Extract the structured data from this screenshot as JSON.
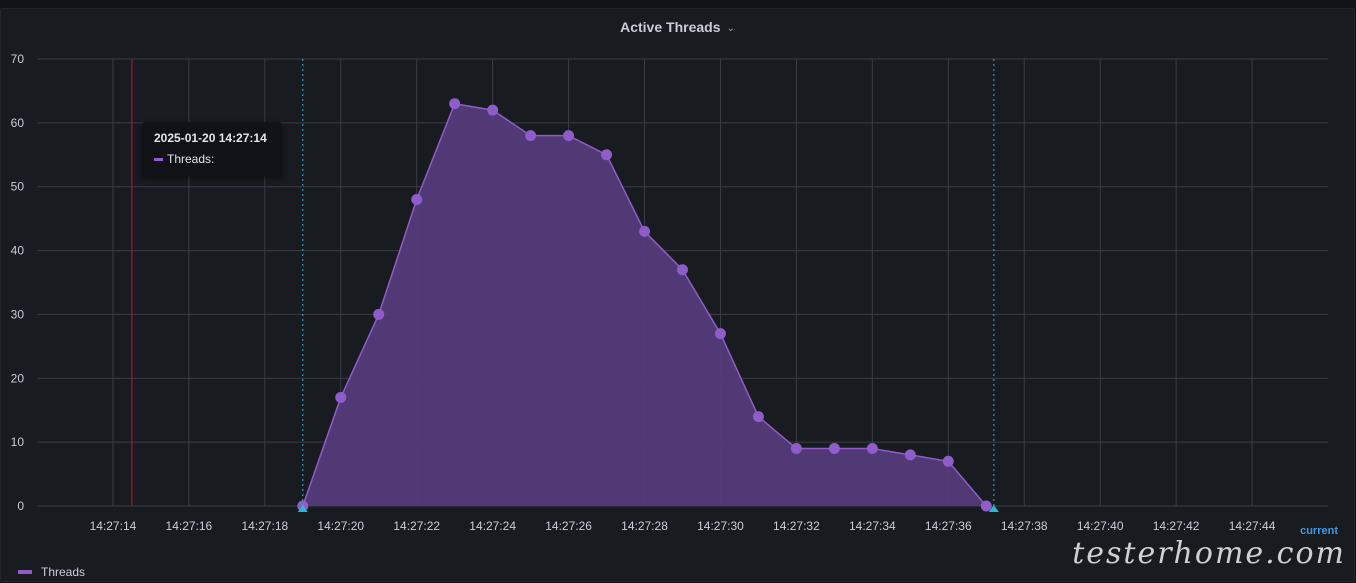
{
  "panel": {
    "title": "Active Threads"
  },
  "tooltip": {
    "time": "2025-01-20 14:27:14",
    "series_label": "Threads:"
  },
  "legend": {
    "items": [
      "Threads"
    ]
  },
  "watermark": {
    "text": "testerhome.com",
    "sub": "current"
  },
  "colors": {
    "series": "#8f5cc9",
    "fill": "#543b7a",
    "grid": "#3a3d44",
    "axis_text": "#ccccdc",
    "marker_red": "#c4162a",
    "annotation_cyan": "#2bb5d6"
  },
  "chart_data": {
    "type": "area",
    "series": [
      {
        "name": "Threads",
        "x": [
          "14:27:19",
          "14:27:20",
          "14:27:21",
          "14:27:22",
          "14:27:23",
          "14:27:24",
          "14:27:25",
          "14:27:26",
          "14:27:27",
          "14:27:28",
          "14:27:29",
          "14:27:30",
          "14:27:31",
          "14:27:32",
          "14:27:33",
          "14:27:34",
          "14:27:35",
          "14:27:36",
          "14:27:37"
        ],
        "values": [
          0,
          17,
          30,
          48,
          63,
          62,
          58,
          58,
          55,
          43,
          37,
          27,
          14,
          9,
          9,
          9,
          8,
          7,
          0
        ]
      }
    ],
    "x_ticks": [
      "14:27:14",
      "14:27:16",
      "14:27:18",
      "14:27:20",
      "14:27:22",
      "14:27:24",
      "14:27:26",
      "14:27:28",
      "14:27:30",
      "14:27:32",
      "14:27:34",
      "14:27:36",
      "14:27:38",
      "14:27:40",
      "14:27:42",
      "14:27:44"
    ],
    "y_ticks": [
      0,
      10,
      20,
      30,
      40,
      50,
      60,
      70
    ],
    "ylim": [
      0,
      70
    ],
    "xlim": [
      "14:27:12",
      "14:27:46"
    ],
    "hover_time": "14:27:14.5",
    "annotations": [
      "14:27:19",
      "14:27:37.2"
    ],
    "grid": true,
    "legend_position": "bottom-left"
  }
}
